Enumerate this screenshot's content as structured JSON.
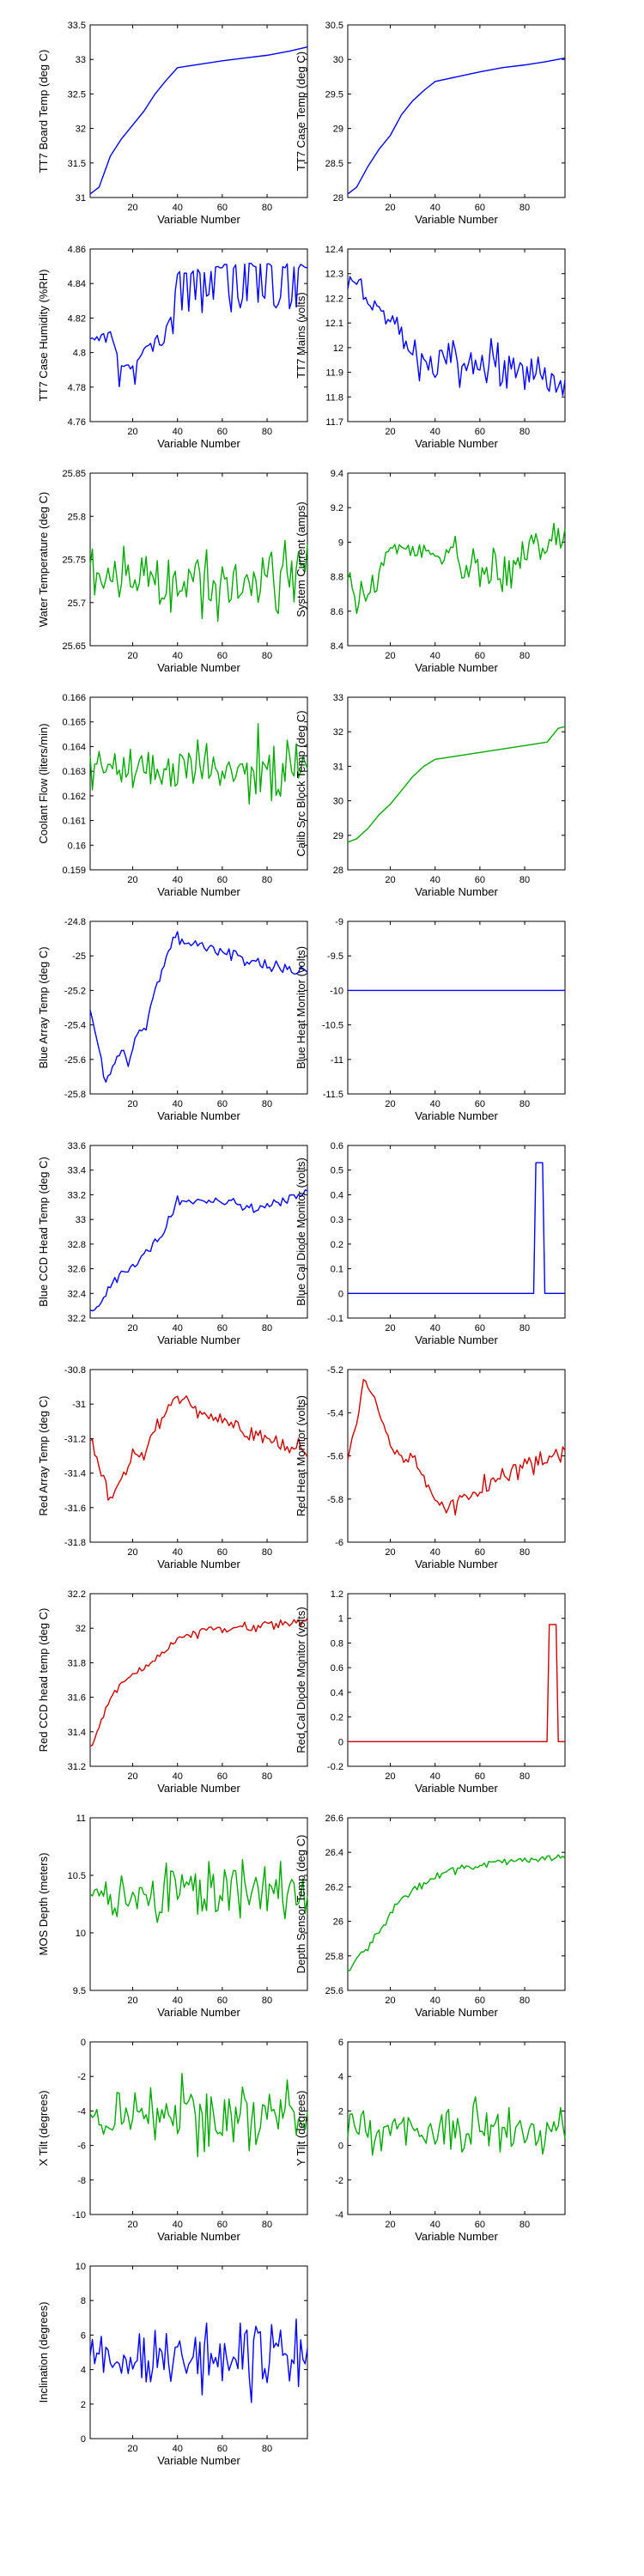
{
  "colors": {
    "blue": "#0000ff",
    "green": "#00aa00",
    "red": "#cc0000"
  },
  "chart_data": [
    {
      "id": "tt7-board-temp",
      "type": "line",
      "ylabel": "TT7 Board Temp (deg C)",
      "xlabel": "Variable Number",
      "ylim": [
        31,
        33.5
      ],
      "yticks": [
        31,
        31.5,
        32,
        32.5,
        33,
        33.5
      ],
      "color": "blue",
      "style": "trend",
      "x": [
        1,
        5,
        10,
        15,
        20,
        25,
        30,
        35,
        40,
        50,
        60,
        70,
        80,
        90,
        98
      ],
      "values": [
        31.05,
        31.15,
        31.6,
        31.85,
        32.05,
        32.25,
        32.5,
        32.7,
        32.88,
        32.93,
        32.98,
        33.02,
        33.06,
        33.12,
        33.18
      ]
    },
    {
      "id": "tt7-case-temp",
      "type": "line",
      "ylabel": "TT7 Case Temp (deg C)",
      "xlabel": "Variable Number",
      "ylim": [
        28,
        30.5
      ],
      "yticks": [
        28,
        28.5,
        29,
        29.5,
        30,
        30.5
      ],
      "color": "blue",
      "style": "trend",
      "x": [
        1,
        5,
        10,
        15,
        20,
        25,
        30,
        35,
        40,
        50,
        60,
        70,
        80,
        90,
        98
      ],
      "values": [
        28.05,
        28.15,
        28.45,
        28.7,
        28.9,
        29.2,
        29.4,
        29.55,
        29.68,
        29.75,
        29.82,
        29.88,
        29.92,
        29.97,
        30.02
      ]
    },
    {
      "id": "tt7-case-humidity",
      "type": "line",
      "ylabel": "TT7 Case Humidity (%RH)",
      "xlabel": "Variable Number",
      "ylim": [
        4.76,
        4.86
      ],
      "yticks": [
        4.76,
        4.78,
        4.8,
        4.82,
        4.84,
        4.86
      ],
      "color": "blue",
      "style": "jumpy",
      "x": [
        1,
        10,
        15,
        20,
        25,
        30,
        35,
        38,
        40,
        60,
        80,
        98
      ],
      "values": [
        4.808,
        4.812,
        4.792,
        4.792,
        4.802,
        4.808,
        4.815,
        4.825,
        4.845,
        4.85,
        4.85,
        4.85
      ],
      "noise": [
        0,
        0.004,
        0.01,
        0.01,
        0.006,
        0.004,
        0.004,
        0.01,
        0.012,
        0.012,
        0.012,
        0.012
      ]
    },
    {
      "id": "tt7-mains",
      "type": "line",
      "ylabel": "TT7 Mains  (volts)",
      "xlabel": "Variable Number",
      "ylim": [
        11.7,
        12.4
      ],
      "yticks": [
        11.7,
        11.8,
        11.9,
        12,
        12.1,
        12.2,
        12.3,
        12.4
      ],
      "color": "blue",
      "style": "noisy",
      "x": [
        1,
        5,
        10,
        15,
        20,
        25,
        30,
        35,
        40,
        50,
        60,
        70,
        80,
        90,
        98
      ],
      "values": [
        12.25,
        12.27,
        12.2,
        12.15,
        12.12,
        12.05,
        11.98,
        11.93,
        11.92,
        11.93,
        11.92,
        11.92,
        11.9,
        11.88,
        11.86
      ],
      "noise": [
        0.03,
        0.03,
        0.04,
        0.04,
        0.04,
        0.04,
        0.05,
        0.06,
        0.07,
        0.07,
        0.07,
        0.07,
        0.07,
        0.07,
        0.06
      ]
    },
    {
      "id": "water-temperature",
      "type": "line",
      "ylabel": "Water Temperature (deg C)",
      "xlabel": "Variable Number",
      "ylim": [
        25.65,
        25.85
      ],
      "yticks": [
        25.65,
        25.7,
        25.75,
        25.8,
        25.85
      ],
      "color": "green",
      "style": "noisy",
      "x": [
        1,
        20,
        40,
        60,
        80,
        98
      ],
      "values": [
        25.735,
        25.73,
        25.728,
        25.73,
        25.735,
        25.74
      ],
      "noise": [
        0.025,
        0.02,
        0.03,
        0.035,
        0.035,
        0.03
      ]
    },
    {
      "id": "system-current",
      "type": "line",
      "ylabel": "System Current (amps)",
      "xlabel": "Variable Number",
      "ylim": [
        8.4,
        9.4
      ],
      "yticks": [
        8.4,
        8.6,
        8.8,
        9,
        9.2,
        9.4
      ],
      "color": "green",
      "style": "noisy",
      "x": [
        1,
        5,
        10,
        20,
        30,
        40,
        50,
        60,
        70,
        80,
        90,
        98
      ],
      "values": [
        8.8,
        8.65,
        8.7,
        8.95,
        8.95,
        8.95,
        8.9,
        8.8,
        8.8,
        8.95,
        9.0,
        9.05
      ],
      "noise": [
        0.05,
        0.07,
        0.08,
        0.04,
        0.03,
        0.04,
        0.08,
        0.12,
        0.12,
        0.08,
        0.08,
        0.07
      ]
    },
    {
      "id": "coolant-flow",
      "type": "line",
      "ylabel": "Coolant Flow (liters/min)",
      "xlabel": "Variable Number",
      "ylim": [
        0.159,
        0.166
      ],
      "yticks": [
        0.159,
        0.16,
        0.161,
        0.162,
        0.163,
        0.164,
        0.165,
        0.166
      ],
      "color": "green",
      "style": "noisy",
      "x": [
        1,
        20,
        40,
        60,
        80,
        98
      ],
      "values": [
        0.1633,
        0.163,
        0.1632,
        0.163,
        0.1628,
        0.1632
      ],
      "noise": [
        0.0007,
        0.0006,
        0.0008,
        0.0008,
        0.0012,
        0.0009
      ]
    },
    {
      "id": "calib-src-block-temp",
      "type": "line",
      "ylabel": "Calib Src Block Temp (deg C)",
      "xlabel": "Variable Number",
      "ylim": [
        28,
        33
      ],
      "yticks": [
        28,
        29,
        30,
        31,
        32,
        33
      ],
      "color": "green",
      "style": "trend",
      "x": [
        1,
        5,
        10,
        15,
        20,
        25,
        30,
        35,
        40,
        50,
        60,
        70,
        80,
        90,
        95,
        98
      ],
      "values": [
        28.8,
        28.9,
        29.2,
        29.6,
        29.9,
        30.3,
        30.7,
        31.0,
        31.2,
        31.3,
        31.4,
        31.5,
        31.6,
        31.7,
        32.1,
        32.15
      ]
    },
    {
      "id": "blue-array-temp",
      "type": "line",
      "ylabel": "Blue Array Temp (deg C)",
      "xlabel": "Variable Number",
      "ylim": [
        -25.8,
        -24.8
      ],
      "yticks": [
        -25.8,
        -25.6,
        -25.4,
        -25.2,
        -25,
        -24.8
      ],
      "color": "blue",
      "style": "noisy",
      "x": [
        1,
        5,
        8,
        12,
        15,
        18,
        22,
        26,
        30,
        34,
        38,
        45,
        55,
        65,
        70,
        80,
        90,
        98
      ],
      "values": [
        -25.3,
        -25.55,
        -25.72,
        -25.62,
        -25.55,
        -25.62,
        -25.45,
        -25.4,
        -25.2,
        -25.05,
        -24.9,
        -24.92,
        -24.95,
        -24.98,
        -25.02,
        -25.05,
        -25.08,
        -25.1
      ],
      "noise": [
        0.02,
        0.02,
        0.03,
        0.02,
        0.02,
        0.02,
        0.02,
        0.02,
        0.02,
        0.02,
        0.03,
        0.03,
        0.03,
        0.03,
        0.03,
        0.03,
        0.03,
        0.03
      ]
    },
    {
      "id": "blue-heat-monitor",
      "type": "line",
      "ylabel": "Blue Heat Monitor (volts)",
      "xlabel": "Variable Number",
      "ylim": [
        -11.5,
        -9
      ],
      "yticks": [
        -11.5,
        -11,
        -10.5,
        -10,
        -9.5,
        -9
      ],
      "color": "blue",
      "style": "trend",
      "x": [
        1,
        98
      ],
      "values": [
        -10,
        -10
      ]
    },
    {
      "id": "blue-ccd-head-temp",
      "type": "line",
      "ylabel": "Blue CCD Head Temp (deg C)",
      "xlabel": "Variable Number",
      "ylim": [
        32.2,
        33.6
      ],
      "yticks": [
        32.2,
        32.4,
        32.6,
        32.8,
        33,
        33.2,
        33.4,
        33.6
      ],
      "color": "blue",
      "style": "noisy",
      "x": [
        1,
        5,
        10,
        15,
        20,
        25,
        30,
        35,
        40,
        50,
        60,
        70,
        75,
        80,
        90,
        98
      ],
      "values": [
        32.25,
        32.3,
        32.45,
        32.55,
        32.62,
        32.7,
        32.8,
        32.95,
        33.15,
        33.15,
        33.15,
        33.12,
        33.08,
        33.1,
        33.18,
        33.22
      ],
      "noise": [
        0.02,
        0.02,
        0.03,
        0.03,
        0.03,
        0.03,
        0.03,
        0.03,
        0.03,
        0.03,
        0.03,
        0.03,
        0.03,
        0.03,
        0.03,
        0.03
      ]
    },
    {
      "id": "blue-cal-diode-monitor",
      "type": "line",
      "ylabel": "Blue Cal Diode Monitor (volts)",
      "xlabel": "Variable Number",
      "ylim": [
        -0.1,
        0.6
      ],
      "yticks": [
        -0.1,
        0,
        0.1,
        0.2,
        0.3,
        0.4,
        0.5,
        0.6
      ],
      "color": "blue",
      "style": "trend",
      "x": [
        1,
        84,
        85,
        88,
        89,
        98
      ],
      "values": [
        0,
        0,
        0.53,
        0.53,
        0,
        0
      ]
    },
    {
      "id": "red-array-temp",
      "type": "line",
      "ylabel": "Red Array Temp (deg C)",
      "xlabel": "Variable Number",
      "ylim": [
        -31.8,
        -30.8
      ],
      "yticks": [
        -31.8,
        -31.6,
        -31.4,
        -31.2,
        -31,
        -30.8
      ],
      "color": "red",
      "style": "noisy",
      "x": [
        1,
        5,
        10,
        15,
        20,
        25,
        30,
        35,
        40,
        45,
        50,
        60,
        70,
        80,
        90,
        98
      ],
      "values": [
        -31.2,
        -31.35,
        -31.55,
        -31.45,
        -31.3,
        -31.3,
        -31.15,
        -31.05,
        -30.95,
        -31.0,
        -31.05,
        -31.08,
        -31.15,
        -31.2,
        -31.25,
        -31.28
      ],
      "noise": [
        0.03,
        0.03,
        0.03,
        0.03,
        0.03,
        0.03,
        0.03,
        0.03,
        0.03,
        0.03,
        0.03,
        0.03,
        0.04,
        0.04,
        0.04,
        0.04
      ]
    },
    {
      "id": "red-heat-monitor",
      "type": "line",
      "ylabel": "Red Heat Monitor (volts)",
      "xlabel": "Variable Number",
      "ylim": [
        -6,
        -5.2
      ],
      "yticks": [
        -6,
        -5.8,
        -5.6,
        -5.4,
        -5.2
      ],
      "color": "red",
      "style": "noisy",
      "x": [
        1,
        5,
        8,
        10,
        15,
        20,
        25,
        30,
        35,
        40,
        45,
        50,
        55,
        60,
        70,
        80,
        90,
        98
      ],
      "values": [
        -5.6,
        -5.45,
        -5.25,
        -5.27,
        -5.4,
        -5.55,
        -5.62,
        -5.6,
        -5.7,
        -5.8,
        -5.85,
        -5.82,
        -5.78,
        -5.75,
        -5.7,
        -5.65,
        -5.6,
        -5.58
      ],
      "noise": [
        0.02,
        0.02,
        0.02,
        0.02,
        0.02,
        0.02,
        0.02,
        0.02,
        0.02,
        0.02,
        0.03,
        0.03,
        0.03,
        0.04,
        0.04,
        0.04,
        0.04,
        0.04
      ]
    },
    {
      "id": "red-ccd-head-temp",
      "type": "line",
      "ylabel": "Red CCD head temp (deg C)",
      "xlabel": "Variable Number",
      "ylim": [
        31.2,
        32.2
      ],
      "yticks": [
        31.2,
        31.4,
        31.6,
        31.8,
        32,
        32.2
      ],
      "color": "red",
      "style": "noisy",
      "x": [
        1,
        5,
        10,
        15,
        20,
        25,
        30,
        35,
        40,
        50,
        60,
        70,
        80,
        90,
        98
      ],
      "values": [
        31.32,
        31.42,
        31.6,
        31.68,
        31.72,
        31.78,
        31.82,
        31.88,
        31.95,
        31.98,
        32.0,
        32.0,
        32.02,
        32.03,
        32.04
      ],
      "noise": [
        0.015,
        0.015,
        0.02,
        0.02,
        0.02,
        0.02,
        0.02,
        0.02,
        0.02,
        0.02,
        0.02,
        0.02,
        0.025,
        0.02,
        0.02
      ]
    },
    {
      "id": "red-cal-diode-monitor",
      "type": "line",
      "ylabel": "Red Cal Diode Monitor (volts)",
      "xlabel": "Variable Number",
      "ylim": [
        -0.2,
        1.2
      ],
      "yticks": [
        -0.2,
        0,
        0.2,
        0.4,
        0.6,
        0.8,
        1,
        1.2
      ],
      "color": "red",
      "style": "trend",
      "x": [
        1,
        90,
        91,
        94,
        95,
        98
      ],
      "values": [
        0,
        0,
        0.95,
        0.95,
        0,
        0
      ]
    },
    {
      "id": "mos-depth",
      "type": "line",
      "ylabel": "MOS Depth  (meters)",
      "xlabel": "Variable Number",
      "ylim": [
        9.5,
        11
      ],
      "yticks": [
        9.5,
        10,
        10.5,
        11
      ],
      "color": "green",
      "style": "noisy",
      "x": [
        1,
        20,
        40,
        60,
        80,
        98
      ],
      "values": [
        10.35,
        10.3,
        10.4,
        10.35,
        10.3,
        10.35
      ],
      "noise": [
        0.15,
        0.15,
        0.2,
        0.22,
        0.22,
        0.2
      ]
    },
    {
      "id": "depth-sensor-temp",
      "type": "line",
      "ylabel": "Depth Sensor Temp (deg C)",
      "xlabel": "Variable Number",
      "ylim": [
        25.6,
        26.6
      ],
      "yticks": [
        25.6,
        25.8,
        26,
        26.2,
        26.4,
        26.6
      ],
      "color": "green",
      "style": "noisy",
      "x": [
        1,
        5,
        10,
        15,
        20,
        25,
        30,
        35,
        40,
        50,
        60,
        70,
        80,
        90,
        98
      ],
      "values": [
        25.7,
        25.78,
        25.85,
        25.95,
        26.05,
        26.12,
        26.18,
        26.22,
        26.26,
        26.3,
        26.32,
        26.34,
        26.36,
        26.37,
        26.38
      ],
      "noise": [
        0.02,
        0.02,
        0.02,
        0.02,
        0.02,
        0.02,
        0.02,
        0.02,
        0.02,
        0.02,
        0.02,
        0.02,
        0.02,
        0.02,
        0.02
      ]
    },
    {
      "id": "x-tilt",
      "type": "line",
      "ylabel": "X Tilt  (degrees)",
      "xlabel": "Variable Number",
      "ylim": [
        -10,
        0
      ],
      "yticks": [
        -10,
        -8,
        -6,
        -4,
        -2,
        0
      ],
      "color": "green",
      "style": "noisy",
      "x": [
        1,
        20,
        40,
        60,
        80,
        98
      ],
      "values": [
        -4.2,
        -4.3,
        -4.2,
        -4.4,
        -4.3,
        -4.2
      ],
      "noise": [
        1.0,
        1.1,
        1.5,
        1.6,
        1.6,
        1.5
      ]
    },
    {
      "id": "y-tilt",
      "type": "line",
      "ylabel": "Y Tilt  (degrees)",
      "xlabel": "Variable Number",
      "ylim": [
        -4,
        6
      ],
      "yticks": [
        -4,
        -2,
        0,
        2,
        4,
        6
      ],
      "color": "green",
      "style": "noisy",
      "x": [
        1,
        20,
        40,
        60,
        80,
        98
      ],
      "values": [
        0.9,
        0.9,
        1.0,
        1.0,
        0.9,
        0.9
      ],
      "noise": [
        0.8,
        0.9,
        1.1,
        1.3,
        1.3,
        1.2
      ]
    },
    {
      "id": "inclination",
      "type": "line",
      "ylabel": "Inclination  (degrees)",
      "xlabel": "Variable Number",
      "ylim": [
        0,
        10
      ],
      "yticks": [
        0,
        2,
        4,
        6,
        8,
        10
      ],
      "color": "blue",
      "style": "noisy",
      "x": [
        1,
        20,
        40,
        60,
        80,
        98
      ],
      "values": [
        4.6,
        4.7,
        4.8,
        4.9,
        4.8,
        4.7
      ],
      "noise": [
        1.0,
        1.1,
        1.4,
        1.6,
        1.5,
        1.4
      ]
    }
  ],
  "x_axis": {
    "xlim": [
      1,
      98
    ],
    "xticks": [
      20,
      40,
      60,
      80
    ]
  }
}
